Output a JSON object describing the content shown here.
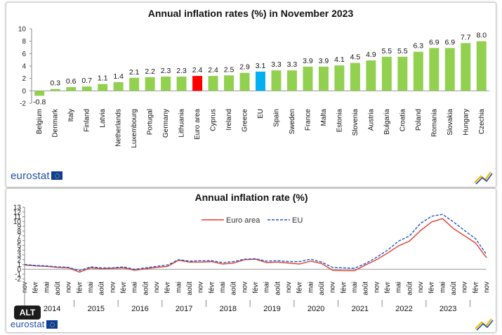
{
  "colors": {
    "bar": "#92d050",
    "highlight_euro": "#ff0000",
    "highlight_eu": "#00b0f0",
    "euro_line": "#e0392b",
    "eu_line": "#1f56c8",
    "brand": "#1e4ea1"
  },
  "brand": {
    "name": "eurostat"
  },
  "alt_badge": "ALT",
  "chart_data": [
    {
      "type": "bar",
      "title": "Annual inflation rates (%) in November 2023",
      "ylim": [
        -2,
        10
      ],
      "yticks": [
        "-2",
        "0",
        "2",
        "4",
        "6",
        "8",
        "10"
      ],
      "categories": [
        "Belgium",
        "Denmark",
        "Italy",
        "Finland",
        "Latvia",
        "Netherlands",
        "Luxembourg",
        "Portugal",
        "Germany",
        "Lithuania",
        "Euro area",
        "Cyprus",
        "Ireland",
        "Greece",
        "EU",
        "Spain",
        "Sweden",
        "France",
        "Malta",
        "Estonia",
        "Slovenia",
        "Austria",
        "Bulgaria",
        "Croatia",
        "Poland",
        "Romania",
        "Slovakia",
        "Hungary",
        "Czechia"
      ],
      "values": [
        -0.8,
        0.3,
        0.6,
        0.7,
        1.1,
        1.4,
        2.1,
        2.2,
        2.3,
        2.3,
        2.4,
        2.4,
        2.5,
        2.9,
        3.1,
        3.3,
        3.3,
        3.9,
        3.9,
        4.1,
        4.5,
        4.9,
        5.5,
        5.5,
        6.3,
        6.9,
        6.9,
        7.7,
        8.0
      ],
      "value_labels": [
        "-0.8",
        "0.3",
        "0.6",
        "0.7",
        "1.1",
        "1.4",
        "2.1",
        "2.2",
        "2.3",
        "2.3",
        "2.4",
        "2.4",
        "2.5",
        "2.9",
        "3.1",
        "3.3",
        "3.3",
        "3.9",
        "3.9",
        "4.1",
        "4.5",
        "4.9",
        "5.5",
        "5.5",
        "6.3",
        "6.9",
        "6.9",
        "7.7",
        "8.0"
      ],
      "highlights": {
        "Euro area": "red",
        "EU": "blue"
      }
    },
    {
      "type": "line",
      "title": "Annual inflation rate (%)",
      "ylim": [
        -2,
        13
      ],
      "yticks": [
        "-2",
        "-1",
        "0",
        "1",
        "2",
        "3",
        "4",
        "5",
        "6",
        "7",
        "8",
        "9",
        "10",
        "11",
        "12",
        "13"
      ],
      "month_labels": [
        "nov",
        "févr",
        "mai",
        "août"
      ],
      "years": [
        "2014",
        "2015",
        "2016",
        "2017",
        "2018",
        "2019",
        "2020",
        "2021",
        "2022",
        "2023"
      ],
      "last_month_label": "nov",
      "x_note": "monthly, Nov 2013 to Nov 2023, one value every 3 months",
      "series": [
        {
          "name": "Euro area",
          "style": "solid",
          "values": [
            0.9,
            0.7,
            0.6,
            0.4,
            0.3,
            -0.6,
            0.3,
            0.1,
            0.2,
            0.3,
            -0.2,
            0.1,
            0.4,
            0.6,
            1.9,
            1.5,
            1.5,
            1.6,
            1.1,
            1.3,
            2.0,
            2.1,
            1.4,
            1.5,
            1.3,
            1.1,
            1.7,
            1.2,
            -0.2,
            -0.3,
            -0.3,
            0.9,
            2.0,
            3.4,
            4.9,
            5.9,
            8.1,
            9.9,
            10.6,
            8.5,
            7.0,
            5.5,
            2.4
          ]
        },
        {
          "name": "EU",
          "style": "dashed",
          "values": [
            1.0,
            0.8,
            0.7,
            0.5,
            0.4,
            -0.3,
            0.5,
            0.3,
            0.3,
            0.5,
            0.0,
            0.3,
            0.6,
            0.9,
            2.0,
            1.7,
            1.8,
            1.8,
            1.4,
            1.6,
            2.1,
            2.2,
            1.7,
            1.8,
            1.6,
            1.6,
            2.1,
            1.5,
            0.4,
            0.3,
            0.2,
            1.2,
            2.5,
            4.0,
            5.9,
            7.0,
            9.6,
            11.1,
            11.5,
            9.9,
            8.1,
            6.4,
            3.1
          ]
        }
      ]
    }
  ]
}
